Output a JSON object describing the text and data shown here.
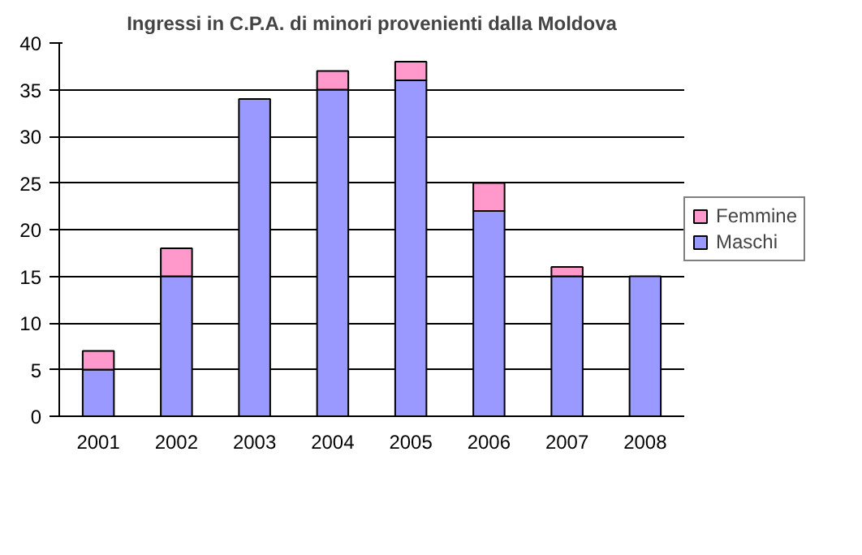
{
  "chart_data": {
    "type": "bar",
    "title": "Ingressi in C.P.A. di minori provenienti dalla Moldova",
    "categories": [
      "2001",
      "2002",
      "2003",
      "2004",
      "2005",
      "2006",
      "2007",
      "2008"
    ],
    "stacked": true,
    "series": [
      {
        "name": "Maschi",
        "color": "#9999ff",
        "values": [
          5,
          15,
          34,
          35,
          36,
          22,
          15,
          15
        ]
      },
      {
        "name": "Femmine",
        "color": "#ff99cc",
        "values": [
          2,
          3,
          0,
          2,
          2,
          3,
          1,
          0
        ]
      }
    ],
    "ylim": [
      0,
      40
    ],
    "yticks": [
      0,
      5,
      10,
      15,
      20,
      25,
      30,
      35,
      40
    ],
    "grid": "y",
    "legend": "right"
  }
}
